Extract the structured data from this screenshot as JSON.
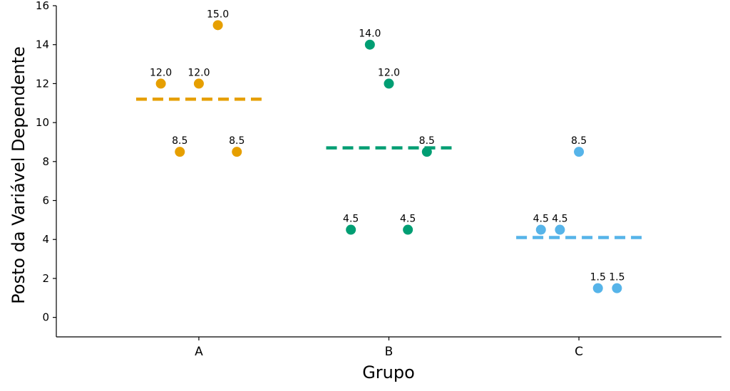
{
  "chart_data": {
    "type": "scatter",
    "title": "",
    "xlabel": "Grupo",
    "ylabel": "Posto da Variável Dependente",
    "categories": [
      "A",
      "B",
      "C"
    ],
    "ylim": [
      -1,
      16
    ],
    "yticks": [
      0,
      2,
      4,
      6,
      8,
      10,
      12,
      14,
      16
    ],
    "grid": false,
    "series": [
      {
        "category": "A",
        "color": "#E69F00",
        "points": [
          {
            "offset": -0.2,
            "y": 12.0,
            "label": "12.0"
          },
          {
            "offset": 0.0,
            "y": 12.0,
            "label": "12.0"
          },
          {
            "offset": 0.1,
            "y": 15.0,
            "label": "15.0"
          },
          {
            "offset": -0.1,
            "y": 8.5,
            "label": "8.5"
          },
          {
            "offset": 0.2,
            "y": 8.5,
            "label": "8.5"
          }
        ],
        "mean": 11.2
      },
      {
        "category": "B",
        "color": "#009E73",
        "points": [
          {
            "offset": -0.1,
            "y": 14.0,
            "label": "14.0"
          },
          {
            "offset": 0.0,
            "y": 12.0,
            "label": "12.0"
          },
          {
            "offset": 0.2,
            "y": 8.5,
            "label": "8.5"
          },
          {
            "offset": -0.2,
            "y": 4.5,
            "label": "4.5"
          },
          {
            "offset": 0.1,
            "y": 4.5,
            "label": "4.5"
          }
        ],
        "mean": 8.7
      },
      {
        "category": "C",
        "color": "#56B4E9",
        "points": [
          {
            "offset": 0.0,
            "y": 8.5,
            "label": "8.5"
          },
          {
            "offset": -0.2,
            "y": 4.5,
            "label": "4.5"
          },
          {
            "offset": -0.1,
            "y": 4.5,
            "label": "4.5"
          },
          {
            "offset": 0.1,
            "y": 1.5,
            "label": "1.5"
          },
          {
            "offset": 0.2,
            "y": 1.5,
            "label": "1.5"
          }
        ],
        "mean": 4.1
      }
    ]
  }
}
